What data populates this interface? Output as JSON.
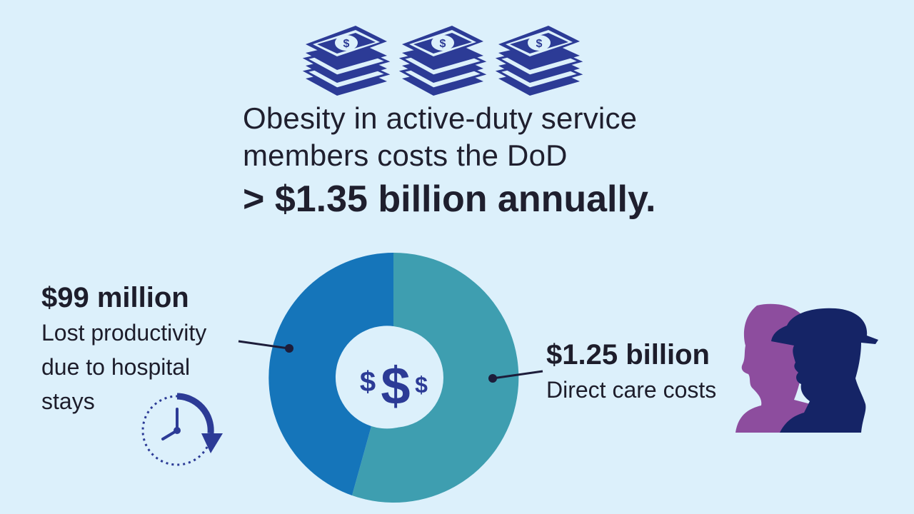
{
  "headline": {
    "line1": "Obesity in active-duty service",
    "line2": "members costs the DoD",
    "total": "> $1.35 billion annually."
  },
  "breakdown": {
    "lost_productivity": {
      "amount": "$99 million",
      "description_lines": [
        "Lost productivity",
        "due to hospital",
        "stays"
      ]
    },
    "direct_care": {
      "amount": "$1.25 billion",
      "description_lines": [
        "Direct care costs"
      ]
    }
  },
  "icons": {
    "money": "money-stack-icon",
    "center": "dollar-signs-icon",
    "clock": "clock-rotate-icon",
    "people": "people-silhouette-icon"
  },
  "colors": {
    "background": "#dcf0fb",
    "donut_left": "#1575ba",
    "donut_right": "#3e9eb0",
    "navy": "#2c3b96",
    "purple": "#8d4d9e"
  }
}
